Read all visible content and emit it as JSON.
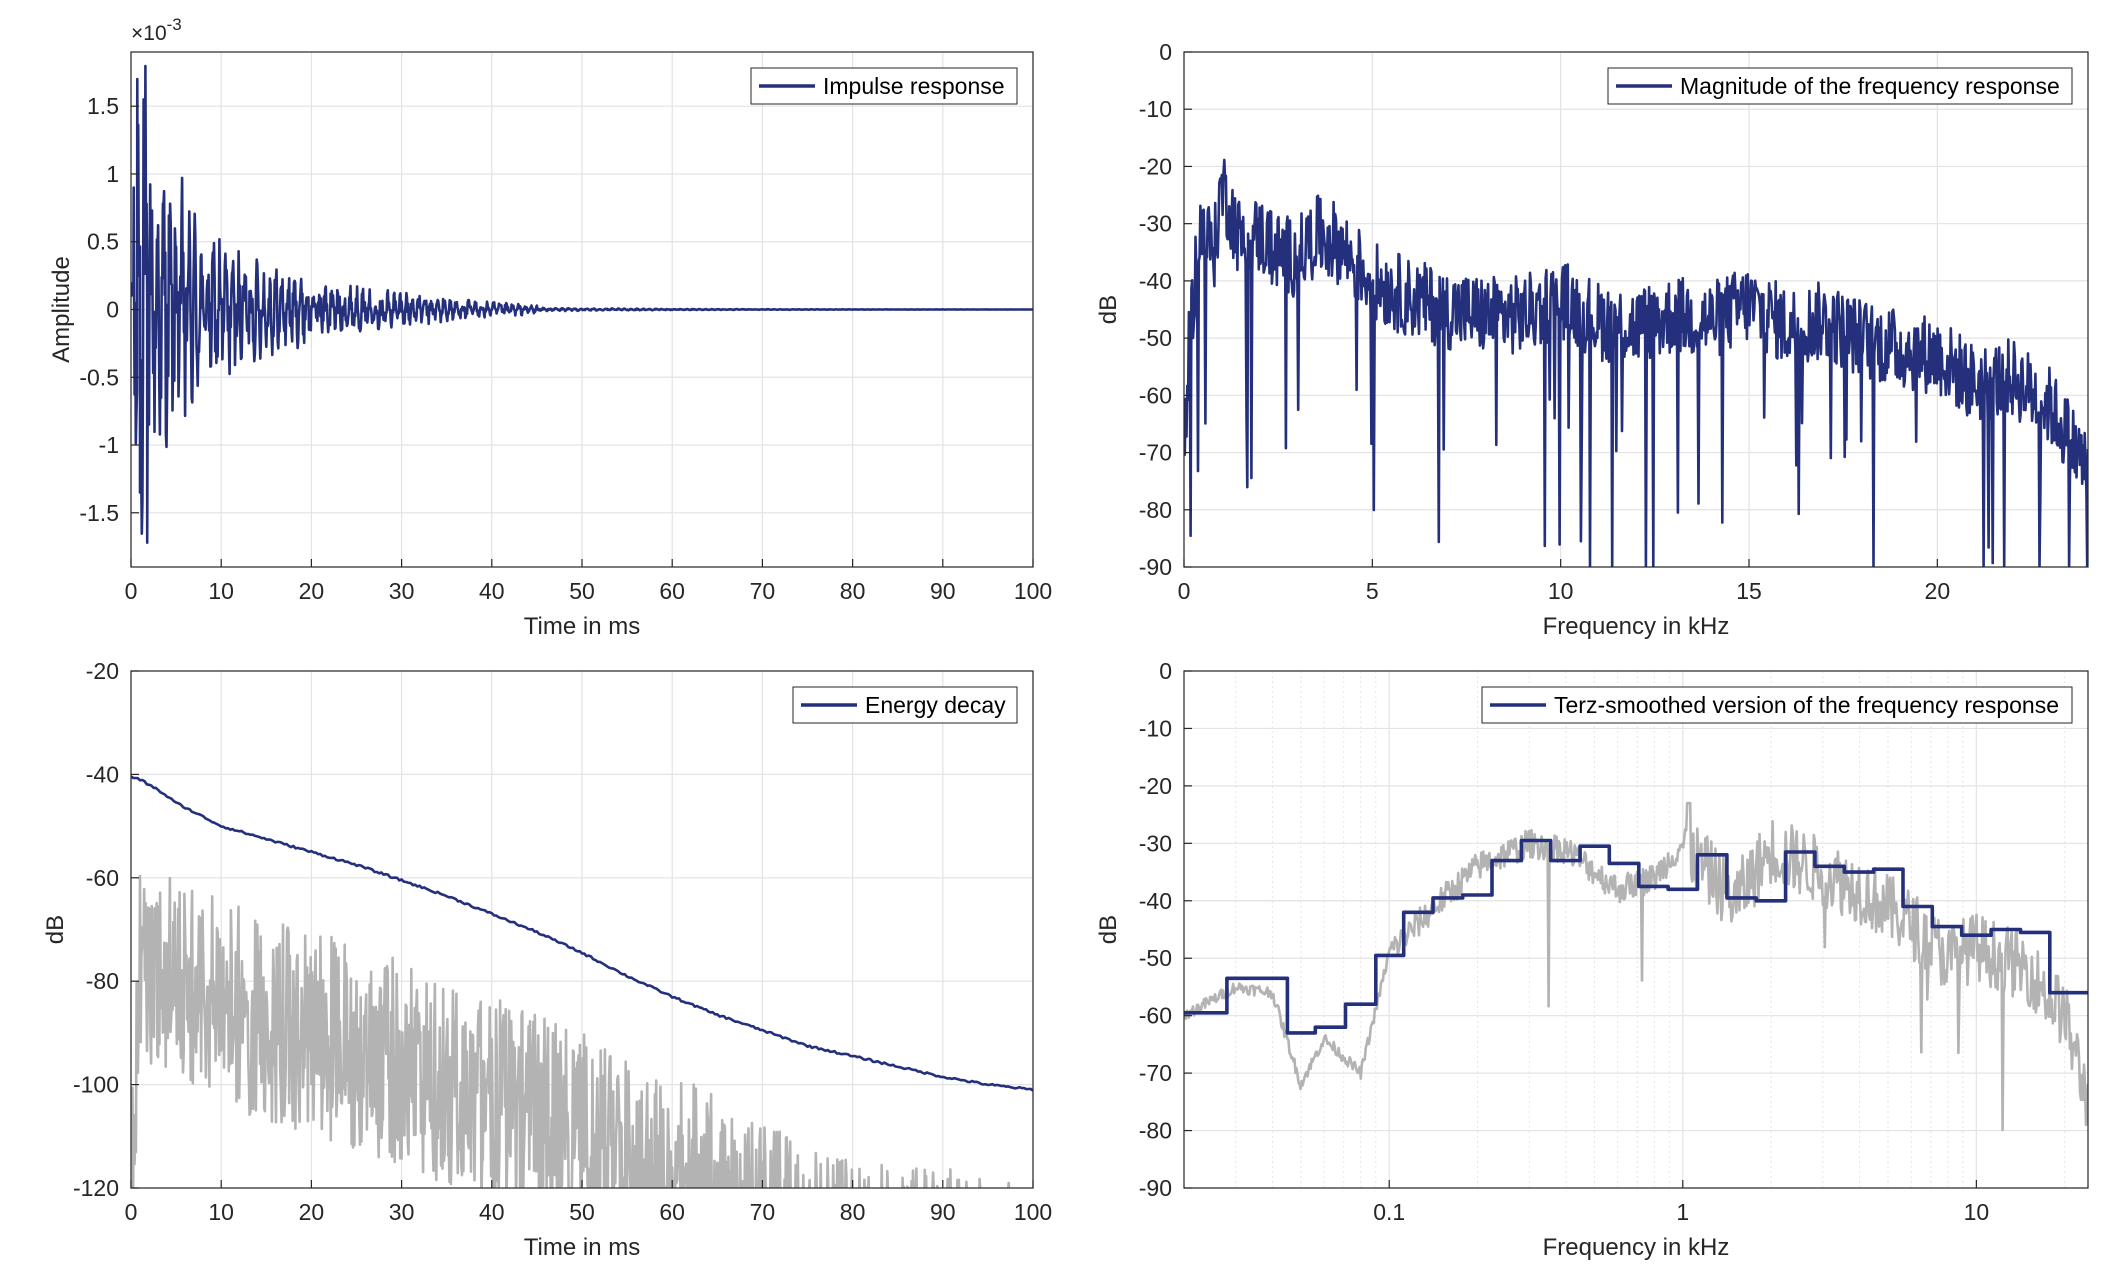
{
  "colors": {
    "primary": "#24307c",
    "secondary": "#b3b3b3",
    "grid": "#e3e3e3",
    "axis": "#262626"
  },
  "chart_data": [
    {
      "type": "line",
      "id": "impulse",
      "xlabel": "Time in ms",
      "ylabel": "Amplitude",
      "xlim": [
        0,
        100
      ],
      "ylim": [
        -1.9,
        1.9
      ],
      "scale_factor": "×10",
      "scale_exponent": "-3",
      "xticks": [
        0,
        10,
        20,
        30,
        40,
        50,
        60,
        70,
        80,
        90,
        100
      ],
      "xtick_labels": [
        "0",
        "10",
        "20",
        "30",
        "40",
        "50",
        "60",
        "70",
        "80",
        "90",
        "100"
      ],
      "yticks": [
        -1.5,
        -1,
        -0.5,
        0,
        0.5,
        1,
        1.5
      ],
      "ytick_labels": [
        "-1.5",
        "-1",
        "-0.5",
        "0",
        "0.5",
        "1",
        "1.5"
      ],
      "grid": true,
      "legend_position": "top-right",
      "series": [
        {
          "name": "Impulse response",
          "color": "#24307c",
          "kind": "decaying-oscillation",
          "x": [
            0.3,
            0.7,
            1.0,
            1.4,
            1.8,
            2.5,
            3.5,
            4.5,
            6,
            8,
            10,
            13,
            16,
            20,
            25,
            30,
            35,
            40,
            45,
            50,
            60,
            70,
            80,
            90,
            100
          ],
          "y": [
            0.9,
            1.7,
            -1.35,
            1.55,
            -1.72,
            0.8,
            -1.1,
            0.75,
            -0.9,
            0.45,
            -0.5,
            0.35,
            -0.3,
            0.2,
            -0.15,
            0.12,
            -0.08,
            0.05,
            -0.03,
            0.02,
            0.01,
            0.005,
            0.003,
            0.002,
            0.001
          ]
        }
      ]
    },
    {
      "type": "line",
      "id": "magnitude",
      "xlabel": "Frequency in kHz",
      "ylabel": "dB",
      "xlim": [
        0,
        24
      ],
      "ylim": [
        -90,
        0
      ],
      "xticks": [
        0,
        5,
        10,
        15,
        20
      ],
      "xtick_labels": [
        "0",
        "5",
        "10",
        "15",
        "20"
      ],
      "yticks": [
        -90,
        -80,
        -70,
        -60,
        -50,
        -40,
        -30,
        -20,
        -10,
        0
      ],
      "ytick_labels": [
        "-90",
        "-80",
        "-70",
        "-60",
        "-50",
        "-40",
        "-30",
        "-20",
        "-10",
        "0"
      ],
      "grid": true,
      "legend_position": "top-right",
      "series": [
        {
          "name": "Magnitude of the frequency response",
          "color": "#24307c",
          "kind": "noisy-spectrum",
          "x": [
            0,
            0.1,
            0.4,
            0.8,
            1.0,
            1.5,
            2.0,
            2.5,
            3.0,
            3.5,
            4.0,
            5,
            6,
            7,
            8,
            9,
            10,
            11,
            12,
            13,
            14,
            15,
            16,
            17,
            18,
            19,
            20,
            21,
            22,
            23,
            24
          ],
          "y": [
            -72,
            -55,
            -30,
            -35,
            -23,
            -33,
            -32,
            -35,
            -36,
            -32,
            -33,
            -40,
            -43,
            -45,
            -46,
            -46,
            -43,
            -47,
            -48,
            -46,
            -47,
            -44,
            -48,
            -47,
            -50,
            -52,
            -53,
            -58,
            -57,
            -62,
            -73
          ]
        }
      ]
    },
    {
      "type": "line",
      "id": "energy",
      "xlabel": "Time in ms",
      "ylabel": "dB",
      "xlim": [
        0,
        100
      ],
      "ylim": [
        -120,
        -20
      ],
      "xticks": [
        0,
        10,
        20,
        30,
        40,
        50,
        60,
        70,
        80,
        90,
        100
      ],
      "xtick_labels": [
        "0",
        "10",
        "20",
        "30",
        "40",
        "50",
        "60",
        "70",
        "80",
        "90",
        "100"
      ],
      "yticks": [
        -120,
        -100,
        -80,
        -60,
        -40,
        -20
      ],
      "ytick_labels": [
        "-120",
        "-100",
        "-80",
        "-60",
        "-40",
        "-20"
      ],
      "grid": true,
      "legend_position": "top-right",
      "series": [
        {
          "name": "Energy decay",
          "color": "#24307c",
          "x": [
            0,
            1,
            3,
            5,
            10,
            15,
            20,
            25,
            30,
            35,
            40,
            45,
            50,
            55,
            60,
            65,
            70,
            75,
            80,
            85,
            90,
            95,
            100
          ],
          "y": [
            -40.5,
            -41,
            -43,
            -45.5,
            -50,
            -52.5,
            -55,
            -57.5,
            -60.5,
            -63.5,
            -67,
            -70.5,
            -74.5,
            -79,
            -83,
            -86.5,
            -89.5,
            -92.5,
            -94.5,
            -96.5,
            -98.5,
            -100,
            -101
          ]
        },
        {
          "name": "",
          "color": "#b3b3b3",
          "kind": "noisy-envelope",
          "x": [
            0,
            1,
            5,
            10,
            20,
            30,
            40,
            50,
            60,
            70,
            75,
            80,
            90,
            95
          ],
          "y": [
            -95,
            -56,
            -60,
            -64,
            -70,
            -76,
            -83,
            -90,
            -98,
            -106,
            -112,
            -115,
            -116,
            -118
          ]
        }
      ]
    },
    {
      "type": "line",
      "id": "terz",
      "xlabel": "Frequency in kHz",
      "ylabel": "dB",
      "xscale": "log",
      "xlim": [
        0.02,
        24
      ],
      "ylim": [
        -90,
        0
      ],
      "xticks": [
        0.1,
        1,
        10
      ],
      "xtick_labels": [
        "0.1",
        "1",
        "10"
      ],
      "yticks": [
        -90,
        -80,
        -70,
        -60,
        -50,
        -40,
        -30,
        -20,
        -10,
        0
      ],
      "ytick_labels": [
        "-90",
        "-80",
        "-70",
        "-60",
        "-50",
        "-40",
        "-30",
        "-20",
        "-10",
        "0"
      ],
      "grid": true,
      "legend_position": "top-right",
      "series": [
        {
          "name": "Terz-smoothed version of the frequency response",
          "color": "#24307c",
          "kind": "step",
          "edges": [
            0.02,
            0.028,
            0.045,
            0.056,
            0.071,
            0.09,
            0.112,
            0.141,
            0.178,
            0.224,
            0.282,
            0.355,
            0.447,
            0.562,
            0.708,
            0.891,
            1.122,
            1.413,
            1.778,
            2.239,
            2.818,
            3.548,
            4.467,
            5.623,
            7.079,
            8.913,
            11.22,
            14.13,
            17.78,
            24
          ],
          "values": [
            -59.5,
            -53.5,
            -63,
            -62,
            -58,
            -49.5,
            -42,
            -39.5,
            -39,
            -33,
            -29.5,
            -33,
            -30.5,
            -33.5,
            -37.5,
            -38,
            -32,
            -39.5,
            -40,
            -31.5,
            -34,
            -35,
            -34.5,
            -41,
            -44.5,
            -46,
            -45,
            -45.5,
            -56
          ]
        },
        {
          "name": "",
          "color": "#b3b3b3",
          "kind": "noisy-spectrum-log",
          "x": [
            0.02,
            0.03,
            0.04,
            0.05,
            0.06,
            0.08,
            0.1,
            0.15,
            0.2,
            0.3,
            0.4,
            0.6,
            0.8,
            1.0,
            1.5,
            2.0,
            3.0,
            4.0,
            6.0,
            8.0,
            10,
            15,
            20,
            24
          ],
          "y": [
            -60,
            -55,
            -56,
            -72,
            -64,
            -70,
            -49,
            -40,
            -34,
            -30,
            -31,
            -38,
            -36,
            -30,
            -40,
            -31,
            -35,
            -38,
            -44,
            -50,
            -48,
            -52,
            -60,
            -75
          ]
        }
      ]
    }
  ]
}
